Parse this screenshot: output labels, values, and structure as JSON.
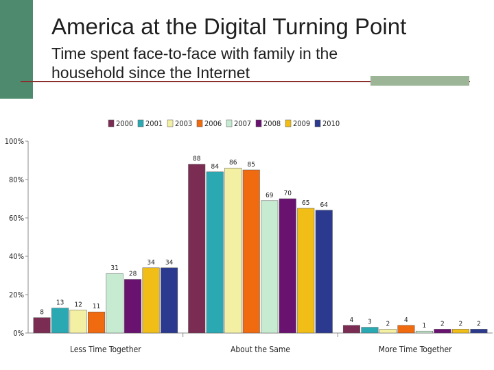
{
  "slide": {
    "title": "America at the Digital Turning Point",
    "subtitle": "Time spent face-to-face with family in the household since the Internet"
  },
  "chart_data": {
    "type": "bar",
    "categories": [
      "Less Time Together",
      "About the Same",
      "More Time Together"
    ],
    "series": [
      {
        "name": "2000",
        "color": "#7b2c52",
        "values": [
          8,
          88,
          4
        ]
      },
      {
        "name": "2001",
        "color": "#2aa9b3",
        "values": [
          13,
          84,
          3
        ]
      },
      {
        "name": "2003",
        "color": "#f3f0a4",
        "values": [
          12,
          86,
          2
        ]
      },
      {
        "name": "2006",
        "color": "#f06a10",
        "values": [
          11,
          85,
          4
        ]
      },
      {
        "name": "2007",
        "color": "#c7ebd1",
        "values": [
          31,
          69,
          1
        ]
      },
      {
        "name": "2008",
        "color": "#6a1270",
        "values": [
          28,
          70,
          2
        ]
      },
      {
        "name": "2009",
        "color": "#f1be17",
        "values": [
          34,
          65,
          2
        ]
      },
      {
        "name": "2010",
        "color": "#2b3a8e",
        "values": [
          34,
          64,
          2
        ]
      }
    ],
    "yticks": [
      "0%",
      "20%",
      "40%",
      "60%",
      "80%",
      "100%"
    ],
    "ylim": [
      0,
      100
    ],
    "legend_position": "top"
  }
}
